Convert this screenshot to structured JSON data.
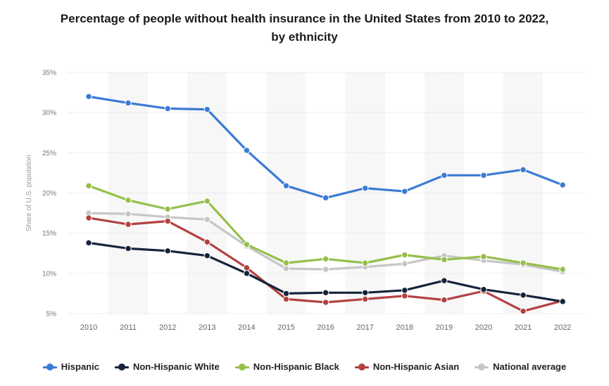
{
  "chart_data": {
    "type": "line",
    "title_line1": "Percentage of people without health insurance in the United States from 2010 to 2022,",
    "title_line2": "by ethnicity",
    "xlabel": "",
    "ylabel": "Share of U.S. population",
    "categories": [
      "2010",
      "2011",
      "2012",
      "2013",
      "2014",
      "2015",
      "2016",
      "2017",
      "2018",
      "2019",
      "2020",
      "2021",
      "2022"
    ],
    "ylim": [
      5,
      35
    ],
    "yticks": [
      5,
      10,
      15,
      20,
      25,
      30,
      35
    ],
    "ytick_labels": [
      "5%",
      "10%",
      "15%",
      "20%",
      "25%",
      "30%",
      "35%"
    ],
    "grid": "horizontal",
    "legend_position": "bottom",
    "series": [
      {
        "name": "Hispanic",
        "color": "#3a7bd5",
        "values": [
          32.0,
          31.2,
          30.5,
          30.4,
          25.3,
          20.9,
          19.4,
          20.6,
          20.2,
          22.2,
          22.2,
          22.9,
          21.0
        ]
      },
      {
        "name": "Non-Hispanic White",
        "color": "#15243a",
        "values": [
          13.8,
          13.1,
          12.8,
          12.2,
          10.0,
          7.5,
          7.6,
          7.6,
          7.9,
          9.1,
          8.0,
          7.3,
          6.5
        ]
      },
      {
        "name": "Non-Hispanic Black",
        "color": "#95bf4a",
        "values": [
          20.9,
          19.1,
          18.0,
          19.0,
          13.6,
          11.3,
          11.8,
          11.3,
          12.3,
          11.7,
          12.1,
          11.3,
          10.5
        ]
      },
      {
        "name": "Non-Hispanic Asian",
        "color": "#b34141",
        "values": [
          16.9,
          16.1,
          16.5,
          13.9,
          10.7,
          6.8,
          6.4,
          6.8,
          7.2,
          6.7,
          7.8,
          5.3,
          6.6
        ]
      },
      {
        "name": "National average",
        "color": "#c6c6c6",
        "values": [
          17.5,
          17.4,
          17.0,
          16.7,
          13.4,
          10.6,
          10.5,
          10.8,
          11.2,
          12.2,
          11.6,
          11.1,
          10.2
        ]
      }
    ]
  }
}
